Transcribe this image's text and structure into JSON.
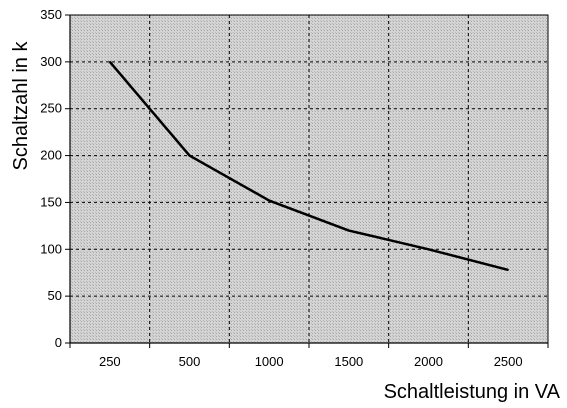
{
  "chart_data": {
    "type": "line",
    "title": "",
    "xlabel": "Schaltleistung in VA",
    "ylabel": "Schaltzahl in k",
    "categories": [
      "250",
      "500",
      "1000",
      "1500",
      "2000",
      "2500"
    ],
    "series": [
      {
        "values": [
          300,
          200,
          152,
          120,
          100,
          78
        ]
      }
    ],
    "ylim": [
      0,
      350
    ],
    "yticks": [
      0,
      50,
      100,
      150,
      200,
      250,
      300,
      350
    ],
    "grid": true,
    "plot_background": "#c8c8c8",
    "line_color": "#000000"
  }
}
